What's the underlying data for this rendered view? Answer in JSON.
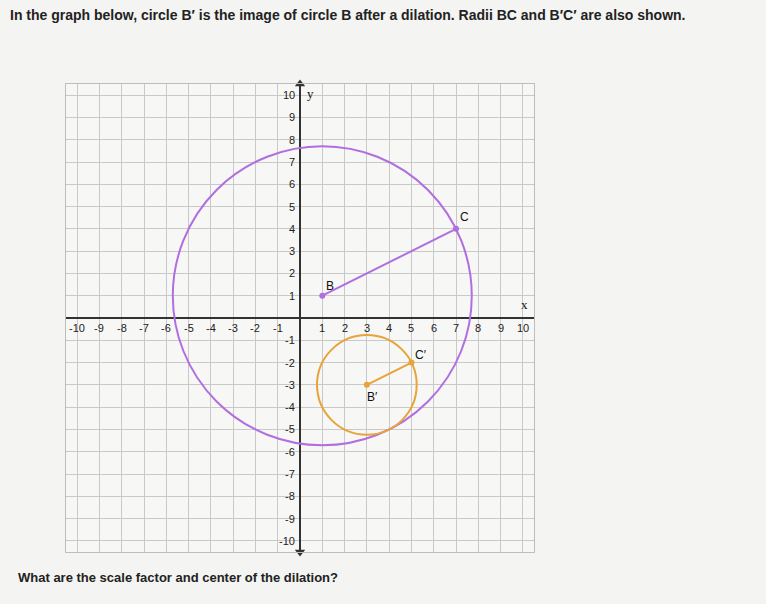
{
  "header": {
    "text": "In the graph below, circle B′ is the image of circle B after a dilation. Radii BC and B′C′ are also shown."
  },
  "question": "What are the scale factor and center of the dilation?",
  "chart_data": {
    "type": "scatter",
    "x_label": "x",
    "y_label": "y",
    "xlim": [
      -10.5,
      10.5
    ],
    "ylim": [
      -10.5,
      10.5
    ],
    "xticks": [
      -10,
      -9,
      -8,
      -7,
      -6,
      -5,
      -4,
      -3,
      -2,
      -1,
      1,
      2,
      3,
      4,
      5,
      6,
      7,
      8,
      9,
      10
    ],
    "yticks": [
      -10,
      -9,
      -8,
      -7,
      -6,
      -5,
      -4,
      -3,
      -2,
      -1,
      1,
      2,
      3,
      4,
      5,
      6,
      7,
      8,
      9,
      10
    ],
    "grid": true,
    "series": [
      {
        "type": "circle",
        "color": "#b06ee0",
        "x": [
          1,
          7
        ],
        "y": [
          1,
          4
        ],
        "point_labels": [
          "B",
          "C"
        ]
      },
      {
        "type": "circle",
        "color": "#e8a33a",
        "x": [
          3,
          5
        ],
        "y": [
          -3,
          -2
        ],
        "point_labels": [
          "B′",
          "C′"
        ]
      }
    ]
  }
}
